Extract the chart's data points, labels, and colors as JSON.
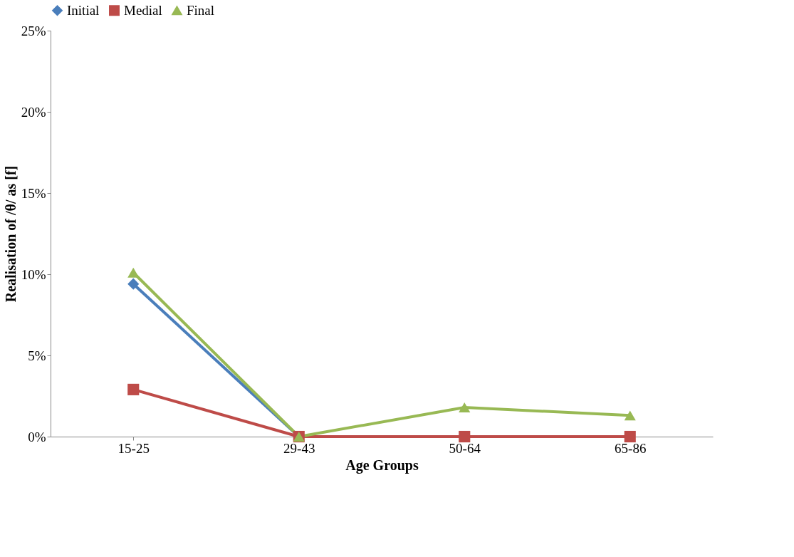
{
  "chart_data": {
    "type": "line",
    "xlabel": "Age Groups",
    "ylabel": "Realisation of /θ/ as [f]",
    "categories": [
      "15-25",
      "29-43",
      "50-64",
      "65-86"
    ],
    "series": [
      {
        "name": "Initial",
        "color": "#4a7ebb",
        "marker": "diamond",
        "values": [
          9.4,
          0,
          null,
          null
        ]
      },
      {
        "name": "Medial",
        "color": "#be4b48",
        "marker": "square",
        "values": [
          2.9,
          0,
          0,
          0
        ]
      },
      {
        "name": "Final",
        "color": "#98b954",
        "marker": "triangle",
        "values": [
          10.1,
          0,
          1.8,
          1.3
        ]
      }
    ],
    "ylim": [
      0,
      25
    ],
    "yticks": [
      {
        "value": 0,
        "label": "0%"
      },
      {
        "value": 5,
        "label": "5%"
      },
      {
        "value": 10,
        "label": "10%"
      },
      {
        "value": 15,
        "label": "15%"
      },
      {
        "value": 20,
        "label": "20%"
      },
      {
        "value": 25,
        "label": "25%"
      }
    ],
    "grid": false,
    "legend": "top",
    "line_style": "solid"
  }
}
